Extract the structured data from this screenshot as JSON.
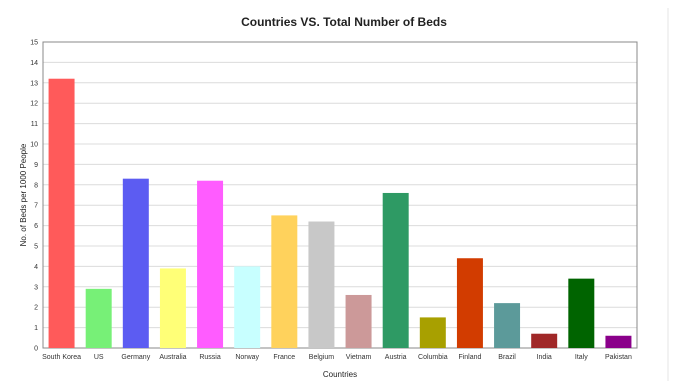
{
  "chart_data": {
    "type": "bar",
    "title": "Countries VS. Total Number of Beds",
    "xlabel": "Countries",
    "ylabel": "No. of Beds per 1000 People",
    "ylim": [
      0,
      15
    ],
    "yticks": [
      0,
      1,
      2,
      3,
      4,
      5,
      6,
      7,
      8,
      9,
      10,
      11,
      12,
      13,
      14,
      15
    ],
    "grid": true,
    "legend": "none",
    "categories": [
      "South Korea",
      "US",
      "Germany",
      "Australia",
      "Russia",
      "Norway",
      "France",
      "Belgium",
      "Vietnam",
      "Austria",
      "Columbia",
      "Finland",
      "Brazil",
      "India",
      "Italy",
      "Pakistan"
    ],
    "values": [
      13.2,
      2.9,
      8.3,
      3.9,
      8.2,
      4.0,
      6.5,
      6.2,
      2.6,
      7.6,
      1.5,
      4.4,
      2.2,
      0.7,
      3.4,
      0.6
    ],
    "colors": [
      "#ff5a5a",
      "#77f077",
      "#5c5cf2",
      "#ffff77",
      "#ff5cff",
      "#c8ffff",
      "#ffd25c",
      "#c8c8c8",
      "#cc9999",
      "#2e9a64",
      "#a8a000",
      "#d23c00",
      "#5c9a9a",
      "#a02828",
      "#006400",
      "#8a008a"
    ]
  }
}
